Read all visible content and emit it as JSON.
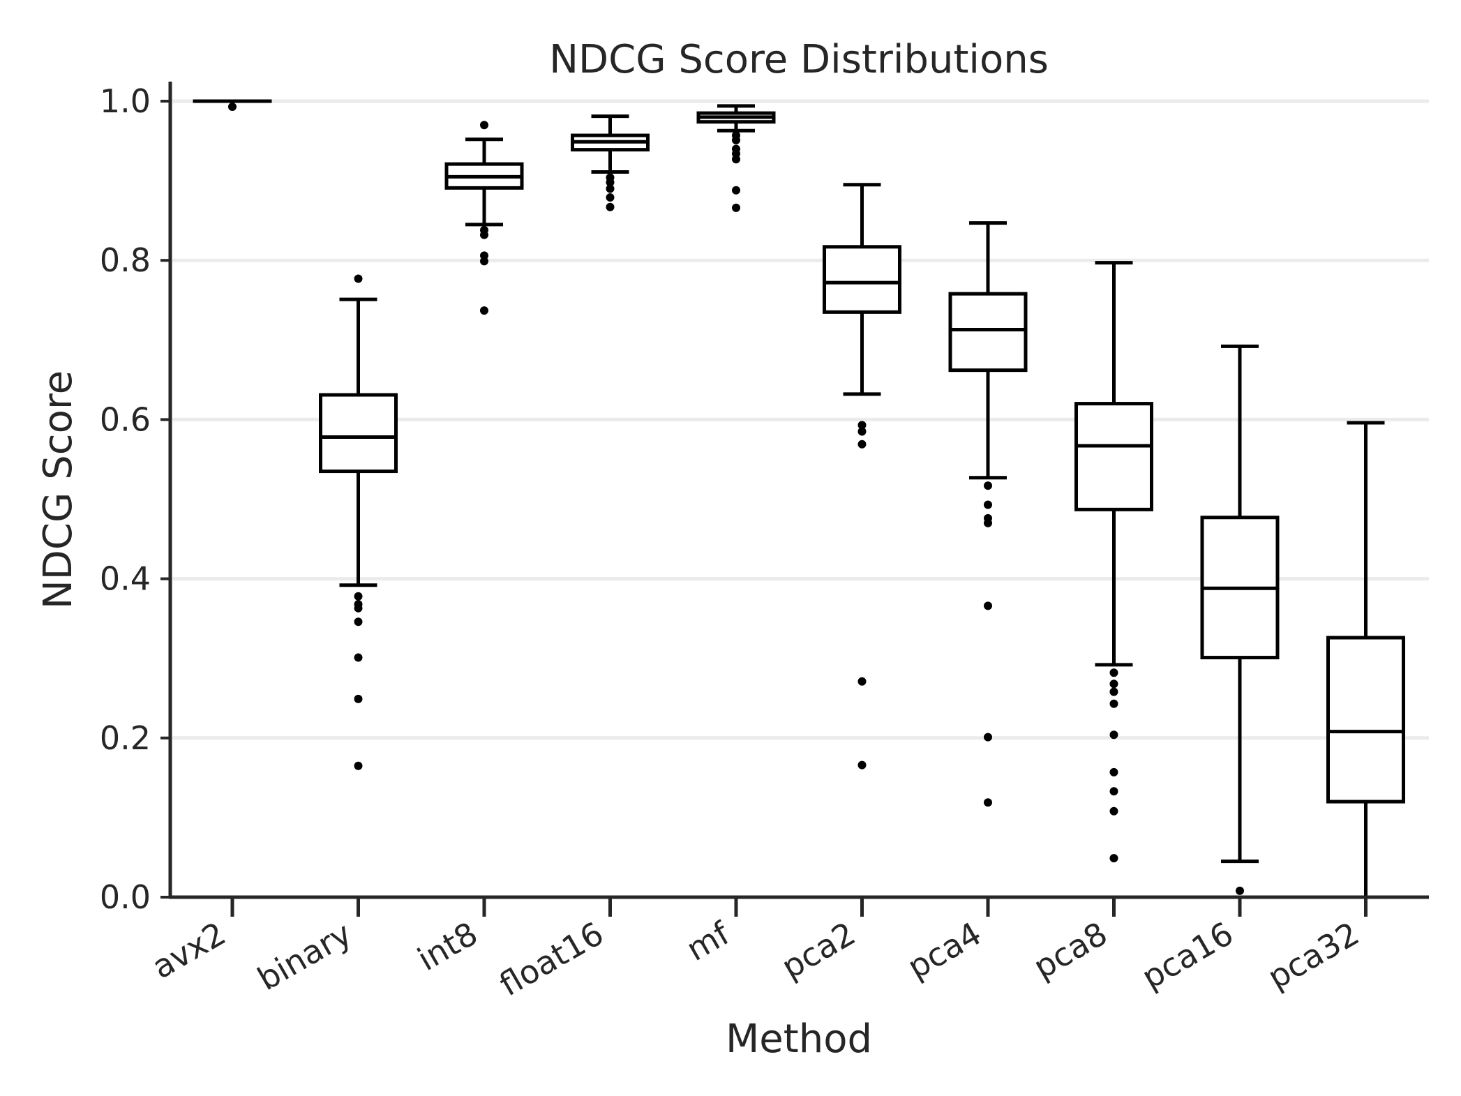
{
  "chart_data": {
    "type": "box",
    "title": "NDCG Score Distributions",
    "xlabel": "Method",
    "ylabel": "NDCG Score",
    "ylim": [
      0.0,
      1.025
    ],
    "yticks": [
      0.0,
      0.2,
      0.4,
      0.6,
      0.8,
      1.0
    ],
    "ytick_labels": [
      "0.0",
      "0.2",
      "0.4",
      "0.6",
      "0.8",
      "1.0"
    ],
    "grid": "horizontal",
    "categories": [
      "avx2",
      "binary",
      "int8",
      "float16",
      "mf",
      "pca2",
      "pca4",
      "pca8",
      "pca16",
      "pca32"
    ],
    "boxes": [
      {
        "name": "avx2",
        "whislo": 1.0,
        "q1": 1.0,
        "med": 1.0,
        "q3": 1.0,
        "whishi": 1.0,
        "fliers": [
          0.993
        ]
      },
      {
        "name": "binary",
        "whislo": 0.392,
        "q1": 0.535,
        "med": 0.578,
        "q3": 0.631,
        "whishi": 0.751,
        "fliers": [
          0.777,
          0.378,
          0.368,
          0.363,
          0.346,
          0.301,
          0.249,
          0.165
        ]
      },
      {
        "name": "int8",
        "whislo": 0.845,
        "q1": 0.891,
        "med": 0.905,
        "q3": 0.921,
        "whishi": 0.952,
        "fliers": [
          0.97,
          0.838,
          0.832,
          0.806,
          0.799,
          0.737
        ]
      },
      {
        "name": "float16",
        "whislo": 0.911,
        "q1": 0.939,
        "med": 0.949,
        "q3": 0.957,
        "whishi": 0.981,
        "fliers": [
          0.904,
          0.898,
          0.89,
          0.879,
          0.867
        ]
      },
      {
        "name": "mf",
        "whislo": 0.963,
        "q1": 0.974,
        "med": 0.98,
        "q3": 0.985,
        "whishi": 0.994,
        "fliers": [
          0.957,
          0.951,
          0.94,
          0.934,
          0.927,
          0.888,
          0.866
        ]
      },
      {
        "name": "pca2",
        "whislo": 0.632,
        "q1": 0.735,
        "med": 0.772,
        "q3": 0.817,
        "whishi": 0.895,
        "fliers": [
          0.593,
          0.585,
          0.569,
          0.271,
          0.166
        ]
      },
      {
        "name": "pca4",
        "whislo": 0.527,
        "q1": 0.662,
        "med": 0.713,
        "q3": 0.758,
        "whishi": 0.847,
        "fliers": [
          0.517,
          0.493,
          0.476,
          0.47,
          0.366,
          0.201,
          0.119
        ]
      },
      {
        "name": "pca8",
        "whislo": 0.292,
        "q1": 0.487,
        "med": 0.567,
        "q3": 0.62,
        "whishi": 0.797,
        "fliers": [
          0.282,
          0.268,
          0.258,
          0.243,
          0.204,
          0.157,
          0.133,
          0.108,
          0.049
        ]
      },
      {
        "name": "pca16",
        "whislo": 0.045,
        "q1": 0.301,
        "med": 0.388,
        "q3": 0.477,
        "whishi": 0.692,
        "fliers": [
          0.008
        ]
      },
      {
        "name": "pca32",
        "whislo": 0.0,
        "q1": 0.12,
        "med": 0.208,
        "q3": 0.326,
        "whishi": 0.596,
        "fliers": []
      }
    ]
  }
}
